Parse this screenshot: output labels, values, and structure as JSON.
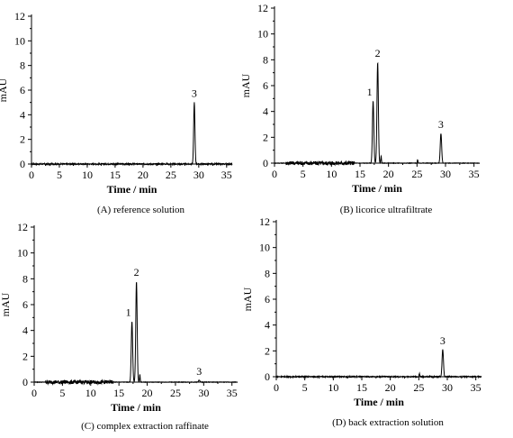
{
  "chart_data": [
    {
      "type": "line",
      "caption": "(A) reference solution",
      "xlabel": "Time / min",
      "ylabel": "mAU",
      "xlim": [
        0,
        36
      ],
      "ylim": [
        0,
        12
      ],
      "xticks": [
        0,
        5,
        10,
        15,
        20,
        25,
        30,
        35
      ],
      "yticks": [
        0,
        2,
        4,
        6,
        8,
        10,
        12
      ],
      "peaks": [
        {
          "label": "3",
          "x": 29.2,
          "y": 5.0,
          "w": 0.28
        }
      ],
      "minor_peaks": [],
      "noise": {
        "start": 0,
        "end": 36,
        "amp": 0.05
      }
    },
    {
      "type": "line",
      "caption": "(B) licorice ultrafiltrate",
      "xlabel": "Time / min",
      "ylabel": "mAU",
      "xlim": [
        0,
        36
      ],
      "ylim": [
        0,
        12
      ],
      "xticks": [
        0,
        5,
        10,
        15,
        20,
        25,
        30,
        35
      ],
      "yticks": [
        0,
        2,
        4,
        6,
        8,
        10,
        12
      ],
      "peaks": [
        {
          "label": "1",
          "x": 17.3,
          "y": 4.8,
          "w": 0.3
        },
        {
          "label": "2",
          "x": 18.1,
          "y": 7.8,
          "w": 0.3
        },
        {
          "label": "3",
          "x": 29.2,
          "y": 2.3,
          "w": 0.3
        }
      ],
      "minor_peaks": [
        {
          "x": 18.7,
          "y": 0.55,
          "w": 0.15
        },
        {
          "x": 25.1,
          "y": 0.25,
          "w": 0.15
        }
      ],
      "noise": {
        "start": 2,
        "end": 14,
        "amp": 0.15
      }
    },
    {
      "type": "line",
      "caption": "(C) complex extraction raffinate",
      "xlabel": "Time / min",
      "ylabel": "mAU",
      "xlim": [
        0,
        36
      ],
      "ylim": [
        0,
        12
      ],
      "xticks": [
        0,
        5,
        10,
        15,
        20,
        25,
        30,
        35
      ],
      "yticks": [
        0,
        2,
        4,
        6,
        8,
        10,
        12
      ],
      "peaks": [
        {
          "label": "1",
          "x": 17.3,
          "y": 4.7,
          "w": 0.3
        },
        {
          "label": "2",
          "x": 18.1,
          "y": 7.8,
          "w": 0.3
        },
        {
          "label": "3",
          "x": 29.2,
          "y": 0.15,
          "w": 0.3
        }
      ],
      "minor_peaks": [
        {
          "x": 18.7,
          "y": 0.6,
          "w": 0.15
        }
      ],
      "noise": {
        "start": 2,
        "end": 14,
        "amp": 0.15
      }
    },
    {
      "type": "line",
      "caption": "(D) back extraction solution",
      "xlabel": "Time / min",
      "ylabel": "mAU",
      "xlim": [
        0,
        36
      ],
      "ylim": [
        0,
        12
      ],
      "xticks": [
        0,
        5,
        10,
        15,
        20,
        25,
        30,
        35
      ],
      "yticks": [
        0,
        2,
        4,
        6,
        8,
        10,
        12
      ],
      "peaks": [
        {
          "label": "3",
          "x": 29.2,
          "y": 2.1,
          "w": 0.3
        }
      ],
      "minor_peaks": [
        {
          "x": 25.1,
          "y": 0.25,
          "w": 0.15
        }
      ],
      "noise": {
        "start": 0,
        "end": 36,
        "amp": 0.04
      }
    }
  ]
}
